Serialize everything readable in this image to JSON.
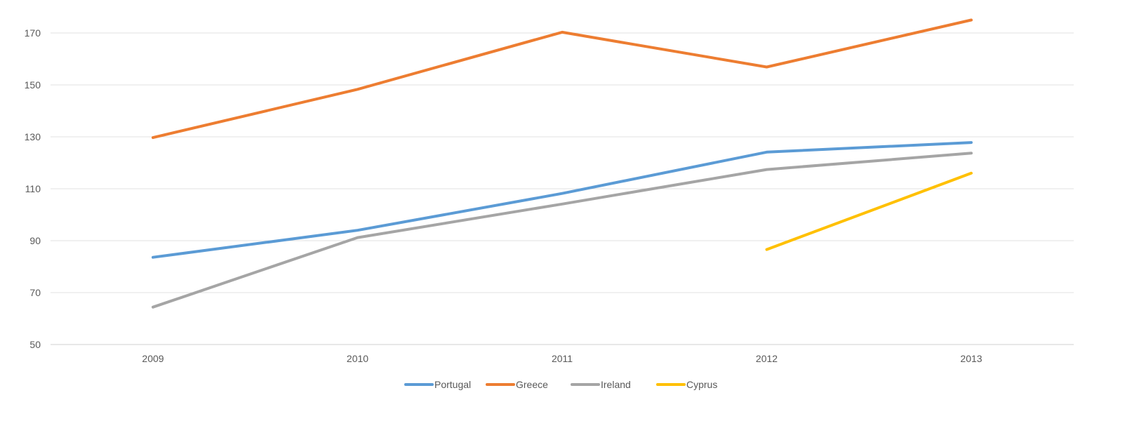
{
  "chart_data": {
    "type": "line",
    "title": "",
    "xlabel": "",
    "ylabel": "",
    "categories": [
      "2009",
      "2010",
      "2011",
      "2012",
      "2013"
    ],
    "ylim": [
      50,
      170
    ],
    "yticks": [
      50,
      70,
      90,
      110,
      130,
      150,
      170
    ],
    "grid": true,
    "legend_position": "bottom",
    "series": [
      {
        "name": "Portugal",
        "color": "#5B9BD5",
        "values": [
          83.6,
          94,
          108.2,
          124.1,
          127.8
        ]
      },
      {
        "name": "Greece",
        "color": "#ED7D31",
        "values": [
          129.7,
          148.3,
          170.3,
          156.9,
          175
        ]
      },
      {
        "name": "Ireland",
        "color": "#A5A5A5",
        "values": [
          64.4,
          91.2,
          104.1,
          117.4,
          123.7
        ]
      },
      {
        "name": "Cyprus",
        "color": "#FFC000",
        "values": [
          null,
          null,
          null,
          86.6,
          116
        ]
      }
    ]
  }
}
